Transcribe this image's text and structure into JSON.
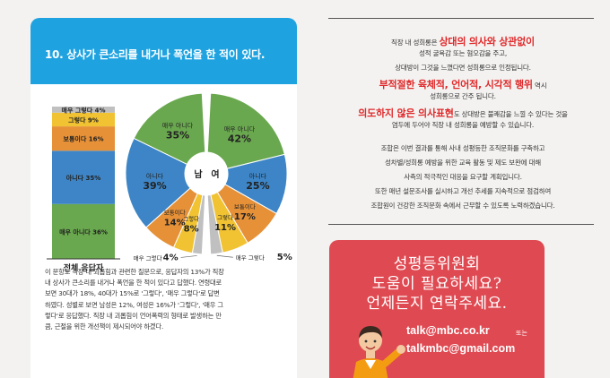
{
  "survey": {
    "title": "10. 상사가 큰소리를 내거나 폭언을 한 적이 있다.",
    "description_lines": [
      "이 문항도 직장 내 괴롭힘과 관련한 질문으로, 응답자의 13%가 직장",
      "내 상사가 큰소리를 내거나 폭언을 한 적이 있다고 답했다. 연령대로",
      "보면 30대가 18%, 40대가 15%로 '그렇다', '매우 그렇다'로 답변",
      "하였다. 성별로 보면 남성은 12%, 여성은 16%가 '그렇다', '매우 그",
      "렇다'로 응답했다. 직장 내 괴롭힘이 언어폭력의 형태로 발생하는 만",
      "큼, 근절을 위한 개선책이 제시되어야 하겠다."
    ]
  },
  "chart_data": [
    {
      "type": "bar",
      "title": "",
      "xlabel": "전체 응답자",
      "categories": [
        "전체 응답자"
      ],
      "series": [
        {
          "name": "매우 아니다",
          "label": "매우 아니다 36%",
          "values": [
            36
          ],
          "color": "#6aa84f"
        },
        {
          "name": "아니다",
          "label": "아니다 35%",
          "values": [
            35
          ],
          "color": "#3d85c6"
        },
        {
          "name": "보통이다",
          "label": "보통이다 16%",
          "values": [
            16
          ],
          "color": "#e69138"
        },
        {
          "name": "그렇다",
          "label": "그렇다 9%",
          "values": [
            9
          ],
          "color": "#f1c232"
        },
        {
          "name": "매우 그렇다",
          "label": "매우 그렇다 4%",
          "values": [
            4
          ],
          "color": "#c0c0c0"
        }
      ]
    },
    {
      "type": "pie",
      "title": "",
      "center_left": "남",
      "center_right": "여",
      "groups": [
        {
          "name": "남",
          "slices": [
            {
              "label": "매우 아니다",
              "pct": "35%",
              "value": 35,
              "color": "#6aa84f"
            },
            {
              "label": "아니다",
              "pct": "39%",
              "value": 39,
              "color": "#3d85c6"
            },
            {
              "label": "보통이다",
              "pct": "14%",
              "value": 14,
              "color": "#e69138"
            },
            {
              "label": "그렇다",
              "pct": "8%",
              "value": 8,
              "color": "#f1c232"
            },
            {
              "label": "매우 그렇다",
              "pct": "4%",
              "value": 4,
              "color": "#c0c0c0"
            }
          ]
        },
        {
          "name": "여",
          "slices": [
            {
              "label": "매우 아니다",
              "pct": "42%",
              "value": 42,
              "color": "#6aa84f"
            },
            {
              "label": "아니다",
              "pct": "25%",
              "value": 25,
              "color": "#3d85c6"
            },
            {
              "label": "보통이다",
              "pct": "17%",
              "value": 17,
              "color": "#e69138"
            },
            {
              "label": "그렇다",
              "pct": "11%",
              "value": 11,
              "color": "#f1c232"
            },
            {
              "label": "매우 그렇다",
              "pct": "5%",
              "value": 5,
              "color": "#c0c0c0"
            }
          ]
        }
      ]
    }
  ],
  "notice": {
    "lines": [
      [
        {
          "t": "직장 내 성희롱은 "
        },
        {
          "t": "상대의 의사와 상관없이",
          "hl": true
        }
      ],
      [
        {
          "t": "성적 굴욕감 또는 혐오감을 주고,"
        }
      ],
      [
        {
          "t": "상대방이 그것을 느꼈다면 성희롱으로 인정됩니다."
        }
      ],
      [
        {
          "t": "부적절한 육체적, 언어적, 시각적 행위",
          "hl": true
        },
        {
          "t": " 역시"
        }
      ],
      [
        {
          "t": "성희롱으로 간주 됩니다."
        }
      ],
      [
        {
          "t": "의도하지 않은 의사표현",
          "hl": true
        },
        {
          "t": "도 상대방은 불쾌감을 느낄 수 있다는 것을"
        }
      ],
      [
        {
          "t": "염두에 두어야 직장 내 성희롱을 예방할 수 있습니다."
        }
      ],
      [
        {
          "t": "조합은 이번 결과를 통해 사내 성평등한 조직문화를 구축하고"
        }
      ],
      [
        {
          "t": "성차별/성희롱 예방을 위한 교육 활동 및 제도 보완에 대해"
        }
      ],
      [
        {
          "t": "사측의 적극적인 대응을 요구할 계획입니다."
        }
      ],
      [
        {
          "t": "또한 매년 설문조사를 실시하고 개선 추세를 지속적으로 점검하여"
        }
      ],
      [
        {
          "t": "조합원이 건강한 조직문화 속에서 근무할 수 있도록 노력하겠습니다."
        }
      ]
    ]
  },
  "contact": {
    "lines": [
      "성평등위원회",
      "도움이 필요하세요?",
      "언제든지 연락주세요."
    ],
    "email1": "talk@mbc.co.kr",
    "separator": "또는",
    "email2": "talkmbc@gmail.com"
  }
}
